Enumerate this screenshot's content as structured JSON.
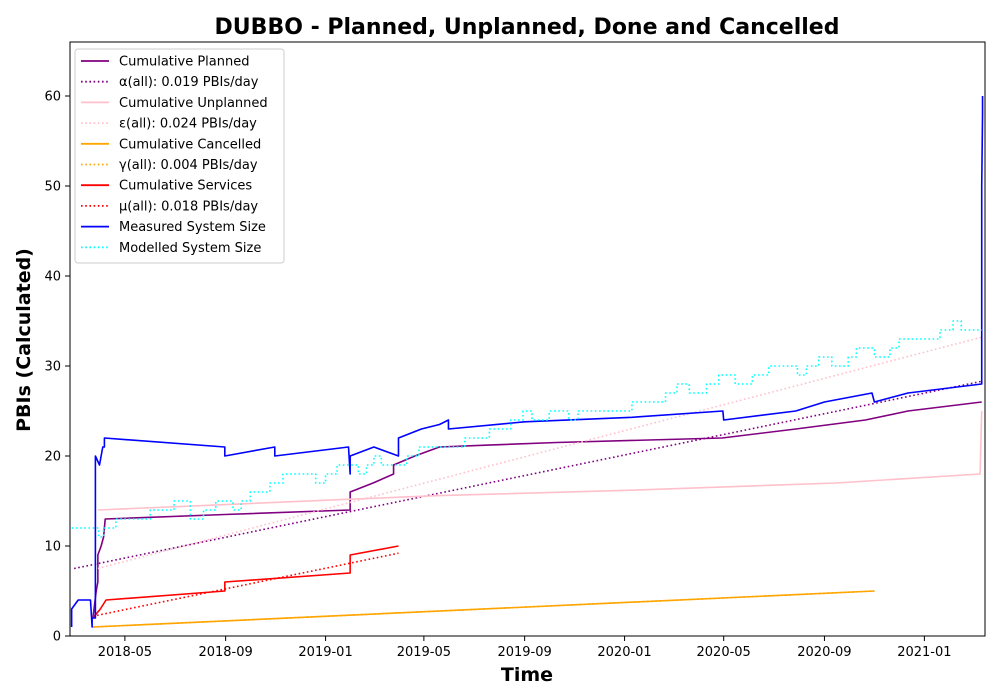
{
  "chart_data": {
    "type": "line",
    "title": "DUBBO - Planned, Unplanned, Done  and Cancelled",
    "xlabel": "Time",
    "ylabel": "PBIs (Calculated)",
    "xlim": [
      "2018-02-23",
      "2021-03-16"
    ],
    "ylim": [
      0,
      66
    ],
    "x_ticks": [
      "2018-05-01",
      "2018-09-01",
      "2019-01-01",
      "2019-05-01",
      "2019-09-01",
      "2020-01-01",
      "2020-05-01",
      "2020-09-01",
      "2021-01-01"
    ],
    "x_tick_labels": [
      "2018-05",
      "2018-09",
      "2019-01",
      "2019-05",
      "2019-09",
      "2020-01",
      "2020-05",
      "2020-09",
      "2021-01"
    ],
    "y_ticks": [
      0,
      10,
      20,
      30,
      40,
      50,
      60
    ],
    "grid": false,
    "legend_position": "upper-left",
    "series": [
      {
        "name": "Cumulative Planned",
        "color": "#800080",
        "style": "solid",
        "points": [
          [
            "2018-03-23",
            2
          ],
          [
            "2018-03-27",
            5
          ],
          [
            "2018-03-29",
            6
          ],
          [
            "2018-03-29",
            9
          ],
          [
            "2018-04-02",
            10
          ],
          [
            "2018-04-05",
            11
          ],
          [
            "2018-04-06",
            12
          ],
          [
            "2018-04-07",
            13
          ],
          [
            "2018-08-31",
            13.5
          ],
          [
            "2019-01-31",
            14
          ],
          [
            "2019-01-31",
            16
          ],
          [
            "2019-02-28",
            17
          ],
          [
            "2019-03-25",
            18
          ],
          [
            "2019-03-25",
            19
          ],
          [
            "2019-04-20",
            20
          ],
          [
            "2019-05-20",
            21
          ],
          [
            "2019-07-15",
            21.2
          ],
          [
            "2019-10-10",
            21.5
          ],
          [
            "2020-04-29",
            22
          ],
          [
            "2020-07-28",
            23
          ],
          [
            "2020-10-21",
            24
          ],
          [
            "2020-12-12",
            25
          ],
          [
            "2021-03-12",
            26
          ]
        ]
      },
      {
        "name": "α(all): 0.019 PBIs/day",
        "color": "#800080",
        "style": "dotted",
        "points": [
          [
            "2018-02-28",
            7.5
          ],
          [
            "2021-03-12",
            28.3
          ]
        ]
      },
      {
        "name": "Cumulative Unplanned",
        "color": "#ffc0cb",
        "style": "solid",
        "points": [
          [
            "2018-03-29",
            14
          ],
          [
            "2019-01-31",
            15.2
          ],
          [
            "2019-05-20",
            15.6
          ],
          [
            "2020-01-10",
            16.2
          ],
          [
            "2020-09-15",
            17
          ],
          [
            "2021-03-10",
            18
          ],
          [
            "2021-03-12",
            25
          ]
        ]
      },
      {
        "name": "ε(all): 0.024 PBIs/day",
        "color": "#ffc0cb",
        "style": "dotted",
        "points": [
          [
            "2018-03-29",
            7.5
          ],
          [
            "2021-03-12",
            33.2
          ]
        ]
      },
      {
        "name": "Cumulative Cancelled",
        "color": "#ffa500",
        "style": "solid",
        "points": [
          [
            "2018-03-23",
            1
          ],
          [
            "2020-11-01",
            5
          ]
        ]
      },
      {
        "name": "γ(all): 0.004 PBIs/day",
        "color": "#ffa500",
        "style": "dotted",
        "points": [
          [
            "2018-03-23",
            1
          ],
          [
            "2020-11-01",
            5
          ]
        ]
      },
      {
        "name": "Cumulative Services",
        "color": "#ff0000",
        "style": "solid",
        "points": [
          [
            "2018-03-23",
            2
          ],
          [
            "2018-04-01",
            3
          ],
          [
            "2018-04-08",
            4
          ],
          [
            "2018-08-31",
            5
          ],
          [
            "2018-08-31",
            6
          ],
          [
            "2019-01-31",
            7
          ],
          [
            "2019-01-31",
            9
          ],
          [
            "2019-03-31",
            10
          ]
        ]
      },
      {
        "name": "μ(all): 0.018 PBIs/day",
        "color": "#ff0000",
        "style": "dotted",
        "points": [
          [
            "2018-03-23",
            2.2
          ],
          [
            "2019-03-31",
            9.2
          ]
        ]
      },
      {
        "name": "Measured System Size",
        "color": "#0000ff",
        "style": "solid",
        "points": [
          [
            "2018-02-25",
            1
          ],
          [
            "2018-02-25",
            3
          ],
          [
            "2018-03-05",
            4
          ],
          [
            "2018-03-20",
            4
          ],
          [
            "2018-03-22",
            1
          ],
          [
            "2018-03-22",
            2
          ],
          [
            "2018-03-26",
            2
          ],
          [
            "2018-03-26",
            20
          ],
          [
            "2018-03-31",
            19
          ],
          [
            "2018-04-04",
            21
          ],
          [
            "2018-04-06",
            21
          ],
          [
            "2018-04-06",
            22
          ],
          [
            "2018-08-31",
            21
          ],
          [
            "2018-08-31",
            20
          ],
          [
            "2018-10-31",
            21
          ],
          [
            "2018-10-31",
            20
          ],
          [
            "2019-01-29",
            21
          ],
          [
            "2019-01-31",
            18
          ],
          [
            "2019-01-31",
            20
          ],
          [
            "2019-03-01",
            21
          ],
          [
            "2019-03-31",
            20
          ],
          [
            "2019-03-31",
            22
          ],
          [
            "2019-04-28",
            23
          ],
          [
            "2019-05-20",
            23.5
          ],
          [
            "2019-05-31",
            24
          ],
          [
            "2019-05-31",
            23
          ],
          [
            "2019-09-01",
            23.8
          ],
          [
            "2020-01-10",
            24.3
          ],
          [
            "2020-04-30",
            25
          ],
          [
            "2020-05-01",
            24
          ],
          [
            "2020-07-28",
            25
          ],
          [
            "2020-09-01",
            26
          ],
          [
            "2020-10-29",
            27
          ],
          [
            "2020-11-01",
            26
          ],
          [
            "2020-12-12",
            27
          ],
          [
            "2021-03-12",
            28
          ],
          [
            "2021-03-12",
            50
          ],
          [
            "2021-03-13",
            58
          ],
          [
            "2021-03-13",
            60
          ]
        ]
      },
      {
        "name": "Modelled System Size",
        "color": "#00ffff",
        "style": "dotted",
        "step": true,
        "points": [
          [
            "2018-02-25",
            12
          ],
          [
            "2018-03-30",
            11
          ],
          [
            "2018-04-05",
            12
          ],
          [
            "2018-04-20",
            13
          ],
          [
            "2018-05-10",
            13
          ],
          [
            "2018-06-01",
            14
          ],
          [
            "2018-06-30",
            15
          ],
          [
            "2018-07-20",
            13
          ],
          [
            "2018-08-05",
            14
          ],
          [
            "2018-08-20",
            15
          ],
          [
            "2018-09-10",
            14
          ],
          [
            "2018-09-20",
            15
          ],
          [
            "2018-10-01",
            16
          ],
          [
            "2018-10-25",
            17
          ],
          [
            "2018-11-10",
            18
          ],
          [
            "2018-12-05",
            18
          ],
          [
            "2018-12-20",
            17
          ],
          [
            "2019-01-01",
            18
          ],
          [
            "2019-01-15",
            19
          ],
          [
            "2019-02-10",
            18
          ],
          [
            "2019-02-20",
            19
          ],
          [
            "2019-03-01",
            20
          ],
          [
            "2019-03-10",
            19
          ],
          [
            "2019-04-10",
            20
          ],
          [
            "2019-04-25",
            21
          ],
          [
            "2019-05-20",
            21
          ],
          [
            "2019-06-20",
            22
          ],
          [
            "2019-07-20",
            23
          ],
          [
            "2019-08-15",
            24
          ],
          [
            "2019-08-30",
            25
          ],
          [
            "2019-09-10",
            24
          ],
          [
            "2019-10-01",
            25
          ],
          [
            "2019-10-25",
            24
          ],
          [
            "2019-11-05",
            25
          ],
          [
            "2019-12-20",
            25
          ],
          [
            "2020-01-10",
            26
          ],
          [
            "2020-02-20",
            27
          ],
          [
            "2020-03-05",
            28
          ],
          [
            "2020-03-20",
            27
          ],
          [
            "2020-04-10",
            28
          ],
          [
            "2020-04-25",
            29
          ],
          [
            "2020-05-15",
            28
          ],
          [
            "2020-06-05",
            29
          ],
          [
            "2020-06-25",
            30
          ],
          [
            "2020-07-15",
            30
          ],
          [
            "2020-07-30",
            29
          ],
          [
            "2020-08-10",
            30
          ],
          [
            "2020-08-25",
            31
          ],
          [
            "2020-09-10",
            30
          ],
          [
            "2020-09-30",
            31
          ],
          [
            "2020-10-10",
            32
          ],
          [
            "2020-11-01",
            31
          ],
          [
            "2020-11-20",
            32
          ],
          [
            "2020-12-01",
            33
          ],
          [
            "2021-01-01",
            33
          ],
          [
            "2021-01-20",
            34
          ],
          [
            "2021-02-05",
            35
          ],
          [
            "2021-02-15",
            34
          ],
          [
            "2021-03-05",
            34
          ],
          [
            "2021-03-12",
            34
          ]
        ]
      }
    ]
  }
}
